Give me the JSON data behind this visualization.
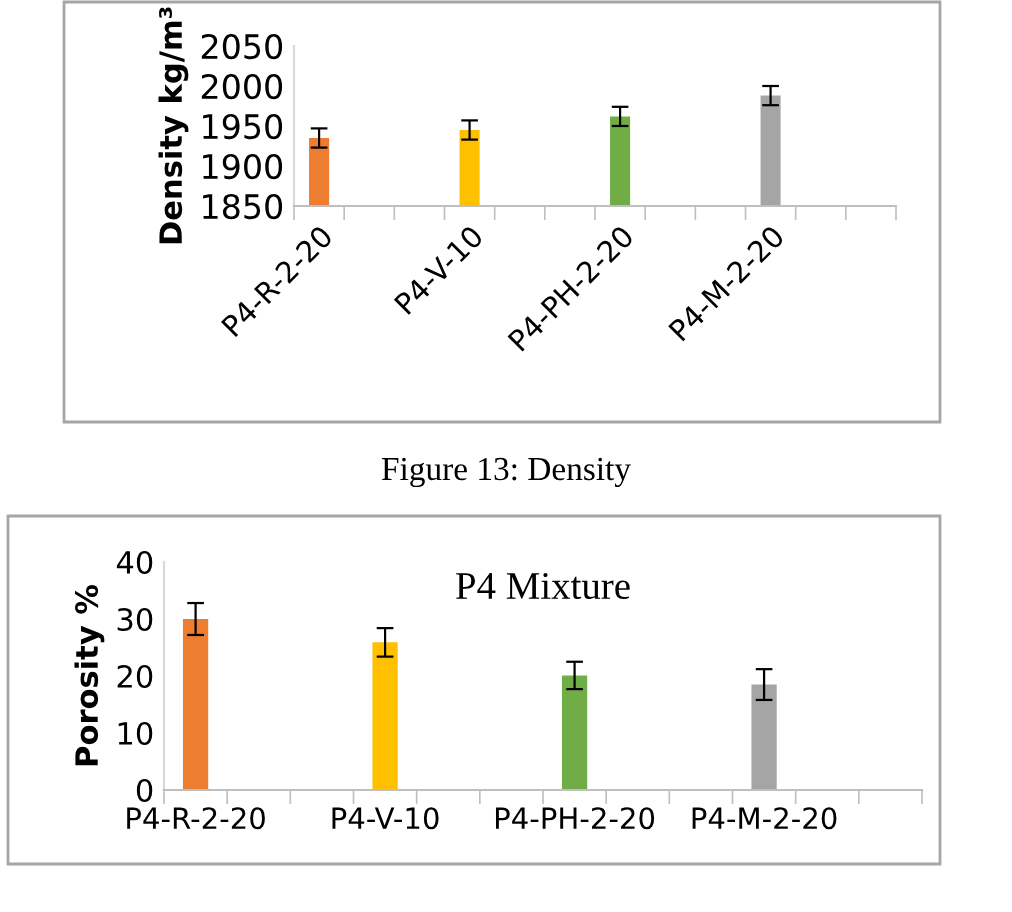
{
  "chart_data": [
    {
      "type": "bar",
      "ylabel": "Density kg/m³",
      "annotations": [
        "Figure 13: Density"
      ],
      "categories": [
        "P4-R-2-20",
        null,
        null,
        "P4-V-10",
        null,
        null,
        "P4-PH-2-20",
        null,
        null,
        "P4-M-2-20",
        null,
        null
      ],
      "values": [
        1935,
        null,
        null,
        1945,
        null,
        null,
        1962,
        null,
        null,
        1988,
        null,
        null
      ],
      "errors": [
        12,
        null,
        null,
        12,
        null,
        null,
        12,
        null,
        null,
        12,
        null,
        null
      ],
      "colors": [
        "#ed7d31",
        null,
        null,
        "#ffc000",
        null,
        null,
        "#70ad47",
        null,
        null,
        "#a5a5a5",
        null,
        null
      ],
      "ylim": [
        1850,
        2050
      ],
      "yticks": [
        1850,
        1900,
        1950,
        2000,
        2050
      ],
      "grid": false,
      "legend": false
    },
    {
      "type": "bar",
      "title": "P4 Mixture",
      "ylabel": "Porosity %",
      "categories": [
        "P4-R-2-20",
        null,
        null,
        "P4-V-10",
        null,
        null,
        "P4-PH-2-20",
        null,
        null,
        "P4-M-2-20",
        null,
        null
      ],
      "values": [
        30.0,
        null,
        null,
        25.9,
        null,
        null,
        20.1,
        null,
        null,
        18.5,
        null,
        null
      ],
      "errors": [
        2.8,
        null,
        null,
        2.5,
        null,
        null,
        2.4,
        null,
        null,
        2.7,
        null,
        null
      ],
      "colors": [
        "#ed7d31",
        null,
        null,
        "#ffc000",
        null,
        null,
        "#70ad47",
        null,
        null,
        "#a5a5a5",
        null,
        null
      ],
      "ylim": [
        0,
        40
      ],
      "yticks": [
        0,
        10,
        20,
        30,
        40
      ],
      "grid": false,
      "legend": false
    }
  ]
}
